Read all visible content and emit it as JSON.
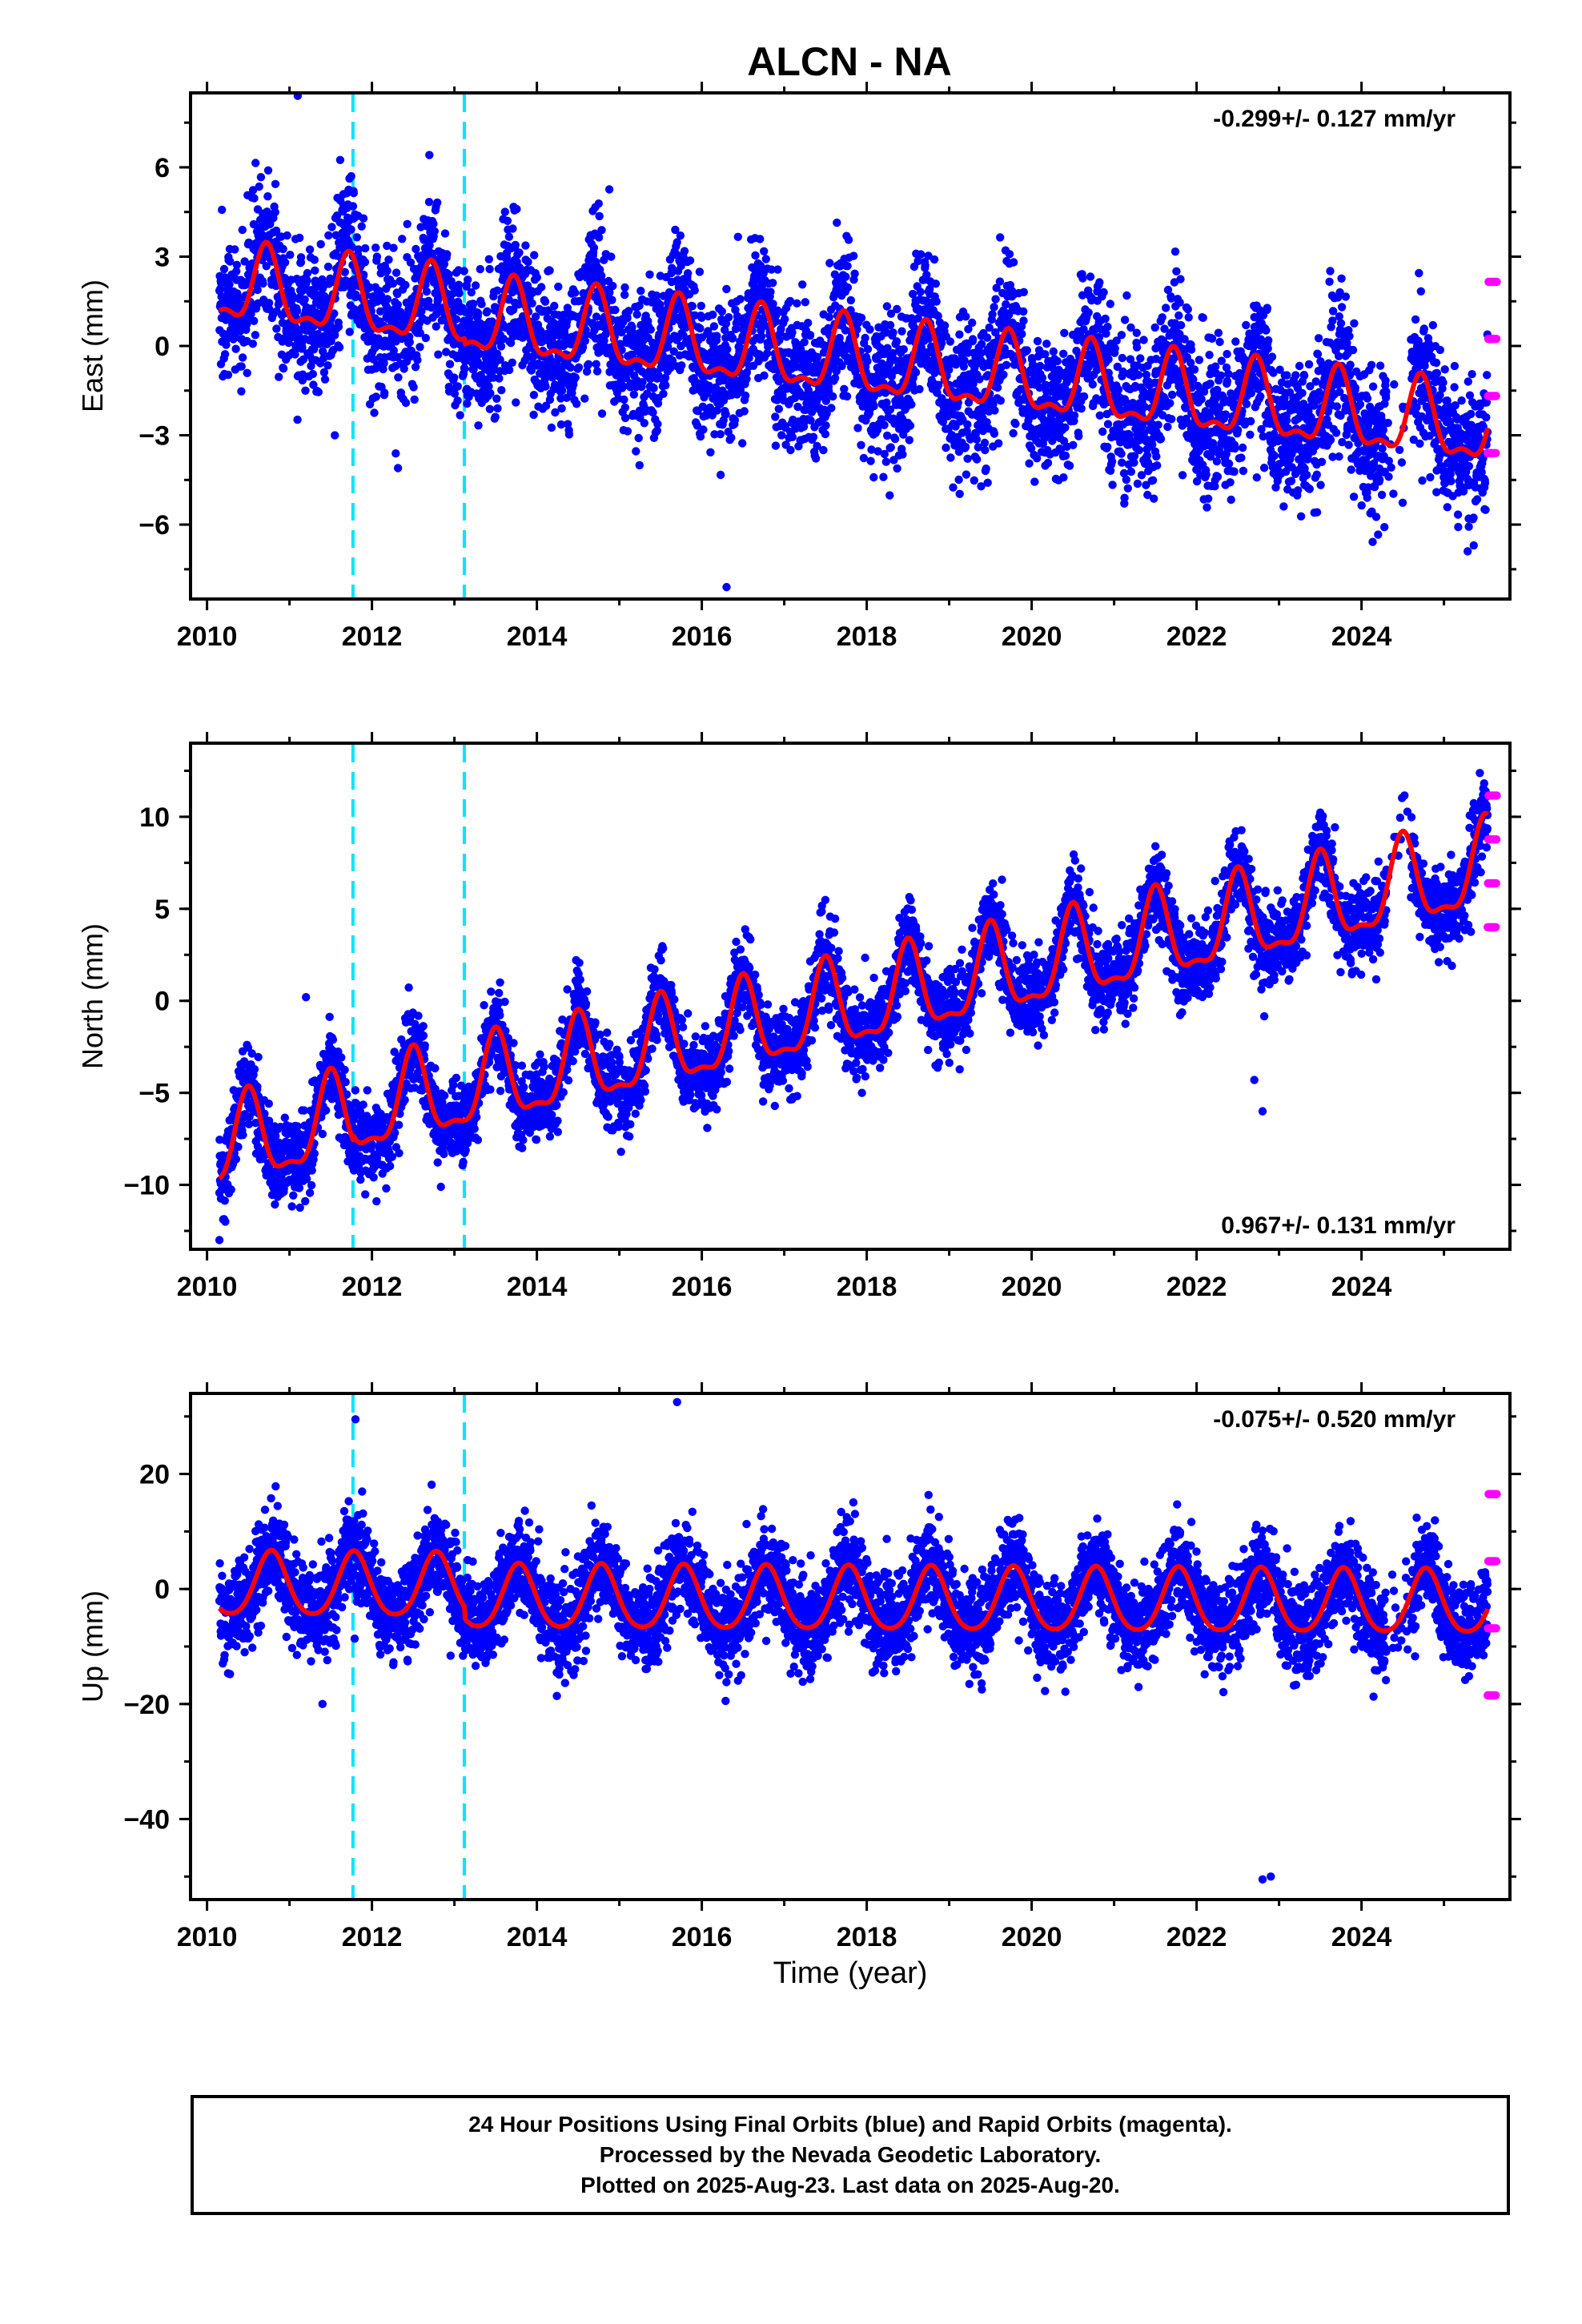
{
  "chart_data": {
    "type": "scatter",
    "title": "ALCN - NA",
    "xlabel": "Time (year)",
    "xlim": [
      2009.8,
      2025.8
    ],
    "x_ticks": [
      2010,
      2012,
      2014,
      2016,
      2018,
      2020,
      2022,
      2024
    ],
    "events": [
      2011.77,
      2013.12
    ],
    "data_start": 2010.15,
    "final_end": 2025.53,
    "last_data": 2025.64,
    "series": [
      {
        "name": "Final Orbits",
        "color": "#0000ff"
      },
      {
        "name": "Rapid Orbits",
        "color": "#ff00ff"
      },
      {
        "name": "Model fit",
        "color": "#ff0000"
      },
      {
        "name": "Events",
        "color": "#00e5ff"
      }
    ],
    "panels": [
      {
        "ylabel": "East (mm)",
        "ylim": [
          -8.5,
          8.5
        ],
        "y_ticks": [
          -6,
          -3,
          0,
          3,
          6
        ],
        "velocity_label": "-0.299+/- 0.127 mm/yr",
        "velocity_position": "top-right",
        "trend": {
          "rate": -0.299,
          "intercept_2010": 2.0
        },
        "seasonal": {
          "annual_amp": 1.2,
          "annual_phase_peak": 0.72,
          "semiannual_amp": 0.5
        },
        "noise_sd": 1.2,
        "offsets": [
          {
            "year": 2013.12,
            "shift": -0.2
          }
        ],
        "outliers": [
          [
            2011.1,
            8.4
          ],
          [
            2016.3,
            -8.1
          ],
          [
            2011.55,
            -3.0
          ],
          [
            2025.3,
            -5.8
          ]
        ],
        "rapid_range": [
          -3.6,
          3.8
        ]
      },
      {
        "ylabel": "North (mm)",
        "ylim": [
          -13.5,
          14
        ],
        "y_ticks": [
          -10,
          -5,
          0,
          5,
          10
        ],
        "velocity_label": "0.967+/- 0.131 mm/yr",
        "velocity_position": "bottom-right",
        "trend": {
          "rate": 0.967,
          "intercept_2010": -8.2
        },
        "seasonal": {
          "annual_amp": 2.3,
          "annual_phase_peak": 0.5,
          "semiannual_amp": 0.8
        },
        "noise_sd": 1.1,
        "offsets": [
          {
            "year": 2011.77,
            "shift": 0.3
          }
        ],
        "outliers": [
          [
            2010.15,
            -13.0
          ],
          [
            2022.7,
            -4.3
          ],
          [
            2022.8,
            -6.0
          ],
          [
            2011.2,
            0.2
          ]
        ],
        "rapid_range": [
          4.0,
          13.2
        ]
      },
      {
        "ylabel": "Up (mm)",
        "ylim": [
          -54,
          34
        ],
        "y_ticks": [
          -40,
          -20,
          0,
          20
        ],
        "velocity_label": "-0.075+/- 0.520 mm/yr",
        "velocity_position": "top-right",
        "trend": {
          "rate": -0.075,
          "intercept_2010": 0.5
        },
        "seasonal": {
          "annual_amp": 5.5,
          "annual_phase_peak": 0.78,
          "semiannual_amp": 0.8
        },
        "noise_sd": 4.0,
        "offsets": [
          {
            "year": 2013.12,
            "shift": -2.0
          }
        ],
        "outliers": [
          [
            2015.7,
            32.5
          ],
          [
            2022.8,
            -50.5
          ],
          [
            2022.9,
            -50.0
          ],
          [
            2011.4,
            -20.0
          ],
          [
            2011.8,
            29.5
          ]
        ],
        "rapid_range": [
          -18.5,
          26.5
        ]
      }
    ]
  },
  "footer": {
    "line1": "24 Hour Positions Using Final Orbits (blue) and Rapid Orbits (magenta).",
    "line2": "Processed by the Nevada Geodetic Laboratory.",
    "line3": "Plotted on 2025-Aug-23. Last data on 2025-Aug-20."
  }
}
